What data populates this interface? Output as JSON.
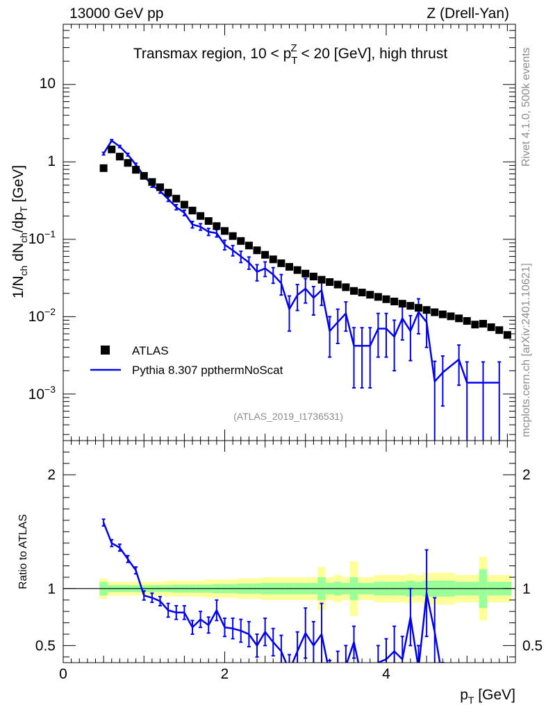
{
  "header": {
    "left": "13000 GeV pp",
    "right": "Z (Drell-Yan)"
  },
  "side_labels": {
    "rivet": "Rivet 4.1.0,  500k events",
    "mcplots": "mcplots.cern.ch [arXiv:2401.10621]"
  },
  "colors": {
    "data": "#000000",
    "mc": "#0000ee",
    "band_inner": "#99ff99",
    "band_outer": "#ffff99",
    "watermark": "#8c8c8c"
  },
  "chart_data": [
    {
      "type": "scatter",
      "panel": "main",
      "title_parts": {
        "before": "Transmax region, 10 < p",
        "sub": "T",
        "sup": "Z",
        "after": " < 20 [GeV], high thrust"
      },
      "ylabel_parts": [
        "1/N",
        "ch",
        " dN",
        "ch",
        "/dp",
        "T",
        " [GeV]"
      ],
      "yscale": "log",
      "ylim": [
        0.00025,
        60
      ],
      "xlim": [
        0,
        5.6
      ],
      "ytick_labels": [
        {
          "value": 10,
          "base": "10",
          "exp": ""
        },
        {
          "value": 1,
          "base": "1",
          "exp": ""
        },
        {
          "value": 0.1,
          "base": "10",
          "exp": "−1"
        },
        {
          "value": 0.01,
          "base": "10",
          "exp": "−2"
        },
        {
          "value": 0.001,
          "base": "10",
          "exp": "−3"
        }
      ],
      "legend": {
        "position": "center-left",
        "entries": [
          "ATLAS",
          "Pythia 8.307 ppthermNoScat"
        ]
      },
      "watermark": "(ATLAS_2019_I1736531)",
      "x": [
        0.5,
        0.6,
        0.7,
        0.8,
        0.9,
        1.0,
        1.1,
        1.2,
        1.3,
        1.4,
        1.5,
        1.6,
        1.7,
        1.8,
        1.9,
        2.0,
        2.1,
        2.2,
        2.3,
        2.4,
        2.5,
        2.6,
        2.7,
        2.8,
        2.9,
        3.0,
        3.1,
        3.2,
        3.3,
        3.4,
        3.5,
        3.6,
        3.7,
        3.8,
        3.9,
        4.0,
        4.1,
        4.2,
        4.3,
        4.4,
        4.5,
        4.6,
        4.7,
        4.8,
        4.9,
        5.0,
        5.1,
        5.2,
        5.3,
        5.4,
        5.5
      ],
      "series": [
        {
          "name": "ATLAS",
          "values": [
            0.83,
            1.45,
            1.17,
            0.97,
            0.79,
            0.66,
            0.55,
            0.47,
            0.4,
            0.335,
            0.28,
            0.235,
            0.2,
            0.172,
            0.148,
            0.128,
            0.11,
            0.095,
            0.083,
            0.072,
            0.063,
            0.055,
            0.049,
            0.044,
            0.04,
            0.036,
            0.033,
            0.03,
            0.028,
            0.026,
            0.024,
            0.0215,
            0.0205,
            0.0192,
            0.018,
            0.0168,
            0.0157,
            0.0147,
            0.0138,
            0.013,
            0.0122,
            0.0114,
            0.0107,
            0.0101,
            0.0095,
            0.0088,
            0.0079,
            0.0081,
            0.0073,
            0.0067,
            0.0058
          ]
        },
        {
          "name": "Pythia 8.307 ppthermNoScat",
          "x_line": [
            0.5,
            0.6,
            0.7,
            0.8,
            0.9,
            1.0,
            1.1,
            1.2,
            1.3,
            1.4,
            1.5,
            1.6,
            1.7,
            1.8,
            1.9,
            2.0,
            2.1,
            2.2,
            2.3,
            2.4,
            2.5,
            2.6,
            2.7,
            2.8,
            2.9,
            3.0,
            3.1,
            3.2,
            3.3,
            3.4,
            3.5,
            3.6,
            3.7,
            3.8,
            3.9,
            4.0,
            4.1,
            4.2,
            4.3,
            4.4,
            4.5,
            4.6,
            4.7,
            4.9,
            5.0,
            5.2,
            5.4
          ],
          "values": [
            1.28,
            1.88,
            1.58,
            1.24,
            0.92,
            0.66,
            0.5,
            0.42,
            0.33,
            0.26,
            0.22,
            0.155,
            0.145,
            0.125,
            0.12,
            0.085,
            0.072,
            0.06,
            0.05,
            0.038,
            0.042,
            0.035,
            0.027,
            0.0125,
            0.019,
            0.023,
            0.0175,
            0.022,
            0.0065,
            0.0085,
            0.011,
            0.0042,
            0.0042,
            0.0042,
            0.007,
            0.007,
            0.0055,
            0.0095,
            0.0065,
            0.0115,
            0.0085,
            0.00145,
            0.0019,
            0.0028,
            0.0014,
            0.0014,
            0.0014
          ],
          "errors": [
            0.05,
            0.06,
            0.05,
            0.05,
            0.04,
            0.03,
            0.03,
            0.025,
            0.022,
            0.02,
            0.018,
            0.015,
            0.014,
            0.013,
            0.013,
            0.012,
            0.011,
            0.01,
            0.009,
            0.009,
            0.009,
            0.008,
            0.008,
            0.006,
            0.007,
            0.008,
            0.007,
            0.008,
            0.0035,
            0.004,
            0.0045,
            0.003,
            0.003,
            0.003,
            0.004,
            0.004,
            0.0035,
            0.0045,
            0.0038,
            0.0055,
            0.0045,
            0.0012,
            0.0012,
            0.0015,
            0.0012,
            0.0012,
            0.0012
          ]
        }
      ]
    },
    {
      "type": "line",
      "panel": "ratio",
      "ylabel": "Ratio to ATLAS",
      "ylim": [
        0.35,
        2.3
      ],
      "xlim": [
        0,
        5.6
      ],
      "xlabel_parts": [
        "p",
        "T",
        " [GeV]"
      ],
      "x_ticks": [
        0,
        2,
        4
      ],
      "y_ticks": [
        0.5,
        1,
        2
      ],
      "reference_line": 1,
      "band_halfwidth_inner": [
        0.06,
        0.03,
        0.03,
        0.03,
        0.03,
        0.03,
        0.03,
        0.03,
        0.03,
        0.035,
        0.035,
        0.035,
        0.035,
        0.035,
        0.04,
        0.04,
        0.04,
        0.045,
        0.045,
        0.045,
        0.05,
        0.05,
        0.05,
        0.05,
        0.05,
        0.05,
        0.05,
        0.1,
        0.05,
        0.06,
        0.05,
        0.1,
        0.05,
        0.05,
        0.06,
        0.06,
        0.06,
        0.06,
        0.07,
        0.06,
        0.07,
        0.07,
        0.07,
        0.07,
        0.06,
        0.06,
        0.06,
        0.17,
        0.06,
        0.06,
        0.06
      ],
      "band_halfwidth_outer": [
        0.09,
        0.06,
        0.06,
        0.06,
        0.06,
        0.06,
        0.06,
        0.06,
        0.07,
        0.07,
        0.07,
        0.07,
        0.07,
        0.08,
        0.08,
        0.08,
        0.08,
        0.09,
        0.09,
        0.09,
        0.1,
        0.1,
        0.1,
        0.1,
        0.1,
        0.1,
        0.1,
        0.19,
        0.1,
        0.12,
        0.1,
        0.24,
        0.1,
        0.1,
        0.12,
        0.12,
        0.12,
        0.12,
        0.13,
        0.12,
        0.14,
        0.14,
        0.14,
        0.14,
        0.12,
        0.12,
        0.12,
        0.28,
        0.12,
        0.12,
        0.12
      ],
      "x_line": [
        0.5,
        0.6,
        0.7,
        0.8,
        0.9,
        1.0,
        1.1,
        1.2,
        1.3,
        1.4,
        1.5,
        1.6,
        1.7,
        1.8,
        1.9,
        2.0,
        2.1,
        2.2,
        2.3,
        2.4,
        2.5,
        2.6,
        2.7,
        2.8,
        2.9,
        3.0,
        3.1,
        3.2,
        3.3,
        3.4,
        3.5,
        3.6,
        3.7,
        3.8,
        3.9,
        4.0,
        4.1,
        4.2,
        4.3,
        4.4,
        4.5,
        4.6,
        4.7
      ],
      "values": [
        1.58,
        1.4,
        1.36,
        1.26,
        1.16,
        0.94,
        0.92,
        0.89,
        0.81,
        0.79,
        0.79,
        0.66,
        0.73,
        0.68,
        0.81,
        0.66,
        0.65,
        0.63,
        0.6,
        0.5,
        0.62,
        0.53,
        0.45,
        0.28,
        0.45,
        0.61,
        0.5,
        0.6,
        0.25,
        0.3,
        0.32,
        0.53,
        0.2,
        0.2,
        0.35,
        0.38,
        0.45,
        0.38,
        0.75,
        0.3,
        0.96,
        0.62,
        0.2
      ],
      "errors": [
        0.03,
        0.03,
        0.03,
        0.03,
        0.03,
        0.04,
        0.04,
        0.04,
        0.06,
        0.06,
        0.06,
        0.06,
        0.07,
        0.07,
        0.09,
        0.08,
        0.09,
        0.1,
        0.11,
        0.1,
        0.12,
        0.12,
        0.14,
        0.14,
        0.17,
        0.22,
        0.21,
        0.27,
        0.12,
        0.15,
        0.18,
        0.14,
        0.12,
        0.12,
        0.15,
        0.18,
        0.22,
        0.2,
        0.25,
        0.2,
        0.38,
        0.3,
        0.15
      ]
    }
  ]
}
